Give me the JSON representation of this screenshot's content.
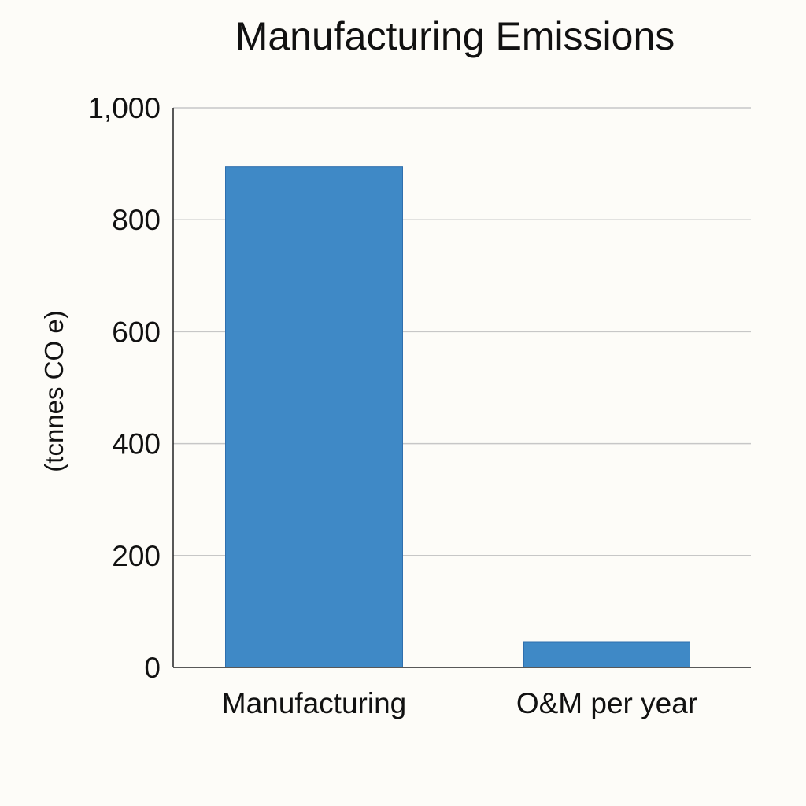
{
  "chart_data": {
    "type": "bar",
    "title": "Manufacturing Emissions",
    "xlabel": "",
    "ylabel": "(tcnnes CO e)",
    "categories": [
      "Manufacturing",
      "O&M per year"
    ],
    "values": [
      895,
      45
    ],
    "ylim": [
      0,
      1000
    ],
    "yticks": [
      0,
      200,
      400,
      600,
      800,
      1000
    ],
    "ytick_labels": [
      "0",
      "200",
      "400",
      "600",
      "800",
      "1,000"
    ],
    "grid": true,
    "legend": "none",
    "colors": {
      "bar": "#3f89c6",
      "grid": "#c7c7c7",
      "axis": "#222222",
      "background": "#fdfcf8"
    }
  }
}
